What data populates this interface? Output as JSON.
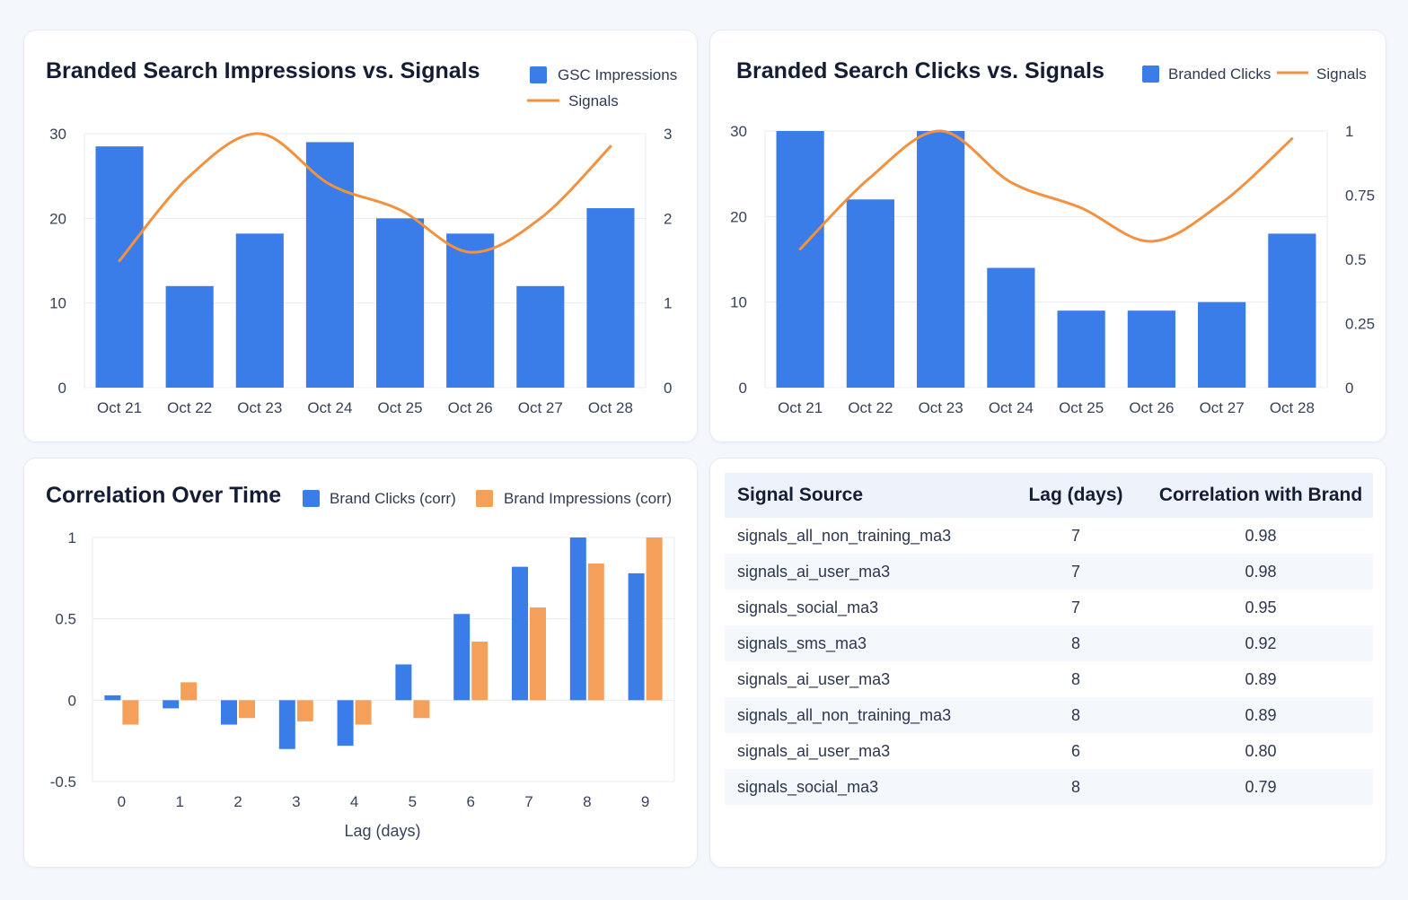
{
  "colors": {
    "blue": "#3b7de8",
    "orange": "#f5a05a",
    "line": "#f2913f",
    "grid": "#e8ebf0"
  },
  "chart_data": [
    {
      "type": "bar",
      "title": "Branded Search Impressions vs. Signals",
      "categories": [
        "Oct 21",
        "Oct 22",
        "Oct 23",
        "Oct 24",
        "Oct 25",
        "Oct 26",
        "Oct 27",
        "Oct 28"
      ],
      "series": [
        {
          "name": "GSC Impressions",
          "type": "bar",
          "axis": "left",
          "values": [
            28.5,
            12,
            18.2,
            29,
            20,
            18.2,
            12,
            21.2
          ]
        },
        {
          "name": "Signals",
          "type": "line",
          "axis": "right",
          "values": [
            1.5,
            2.5,
            3.0,
            2.4,
            2.1,
            1.6,
            2.0,
            2.85
          ]
        }
      ],
      "ylim": [
        0,
        30
      ],
      "y_ticks": [
        "0",
        "10",
        "20",
        "30"
      ],
      "y2lim": [
        0,
        3
      ],
      "y2_ticks": [
        "0",
        "1",
        "2",
        "3"
      ],
      "legend": "top-right"
    },
    {
      "type": "bar",
      "title": "Branded Search Clicks vs. Signals",
      "categories": [
        "Oct 21",
        "Oct 22",
        "Oct 23",
        "Oct 24",
        "Oct 25",
        "Oct 26",
        "Oct 27",
        "Oct 28"
      ],
      "series": [
        {
          "name": "Branded Clicks",
          "type": "bar",
          "axis": "left",
          "values": [
            30,
            22,
            30,
            14,
            9,
            9,
            10,
            18
          ]
        },
        {
          "name": "Signals",
          "type": "line",
          "axis": "right",
          "values": [
            0.54,
            0.82,
            1.0,
            0.8,
            0.7,
            0.57,
            0.72,
            0.97
          ]
        }
      ],
      "ylim": [
        0,
        30
      ],
      "y_ticks": [
        "0",
        "10",
        "20",
        "30"
      ],
      "y2lim": [
        0,
        1
      ],
      "y2_ticks": [
        "0",
        "0.25",
        "0.5",
        "0.75",
        "1"
      ],
      "legend": "top-right"
    },
    {
      "type": "bar",
      "title": "Correlation Over Time",
      "categories": [
        "0",
        "1",
        "2",
        "3",
        "4",
        "5",
        "6",
        "7",
        "8",
        "9"
      ],
      "series": [
        {
          "name": "Brand Clicks (corr)",
          "values": [
            0.03,
            -0.05,
            -0.15,
            -0.3,
            -0.28,
            0.22,
            0.53,
            0.82,
            1.0,
            0.78
          ]
        },
        {
          "name": "Brand Impressions (corr)",
          "values": [
            -0.15,
            0.11,
            -0.11,
            -0.13,
            -0.15,
            -0.11,
            0.36,
            0.57,
            0.84,
            1.0
          ]
        }
      ],
      "xlabel": "Lag (days)",
      "ylim": [
        -0.5,
        1
      ],
      "y_ticks": [
        "-0.5",
        "0",
        "0.5",
        "1"
      ],
      "legend": "top-right"
    }
  ],
  "table": {
    "headers": {
      "source": "Signal Source",
      "lag": "Lag (days)",
      "corr": "Correlation with Brand"
    },
    "rows": [
      {
        "source": "signals_all_non_training_ma3",
        "lag": "7",
        "corr": "0.98"
      },
      {
        "source": "signals_ai_user_ma3",
        "lag": "7",
        "corr": "0.98"
      },
      {
        "source": "signals_social_ma3",
        "lag": "7",
        "corr": "0.95"
      },
      {
        "source": "signals_sms_ma3",
        "lag": "8",
        "corr": "0.92"
      },
      {
        "source": "signals_ai_user_ma3",
        "lag": "8",
        "corr": "0.89"
      },
      {
        "source": "signals_all_non_training_ma3",
        "lag": "8",
        "corr": "0.89"
      },
      {
        "source": "signals_ai_user_ma3",
        "lag": "6",
        "corr": "0.80"
      },
      {
        "source": "signals_social_ma3",
        "lag": "8",
        "corr": "0.79"
      }
    ]
  }
}
